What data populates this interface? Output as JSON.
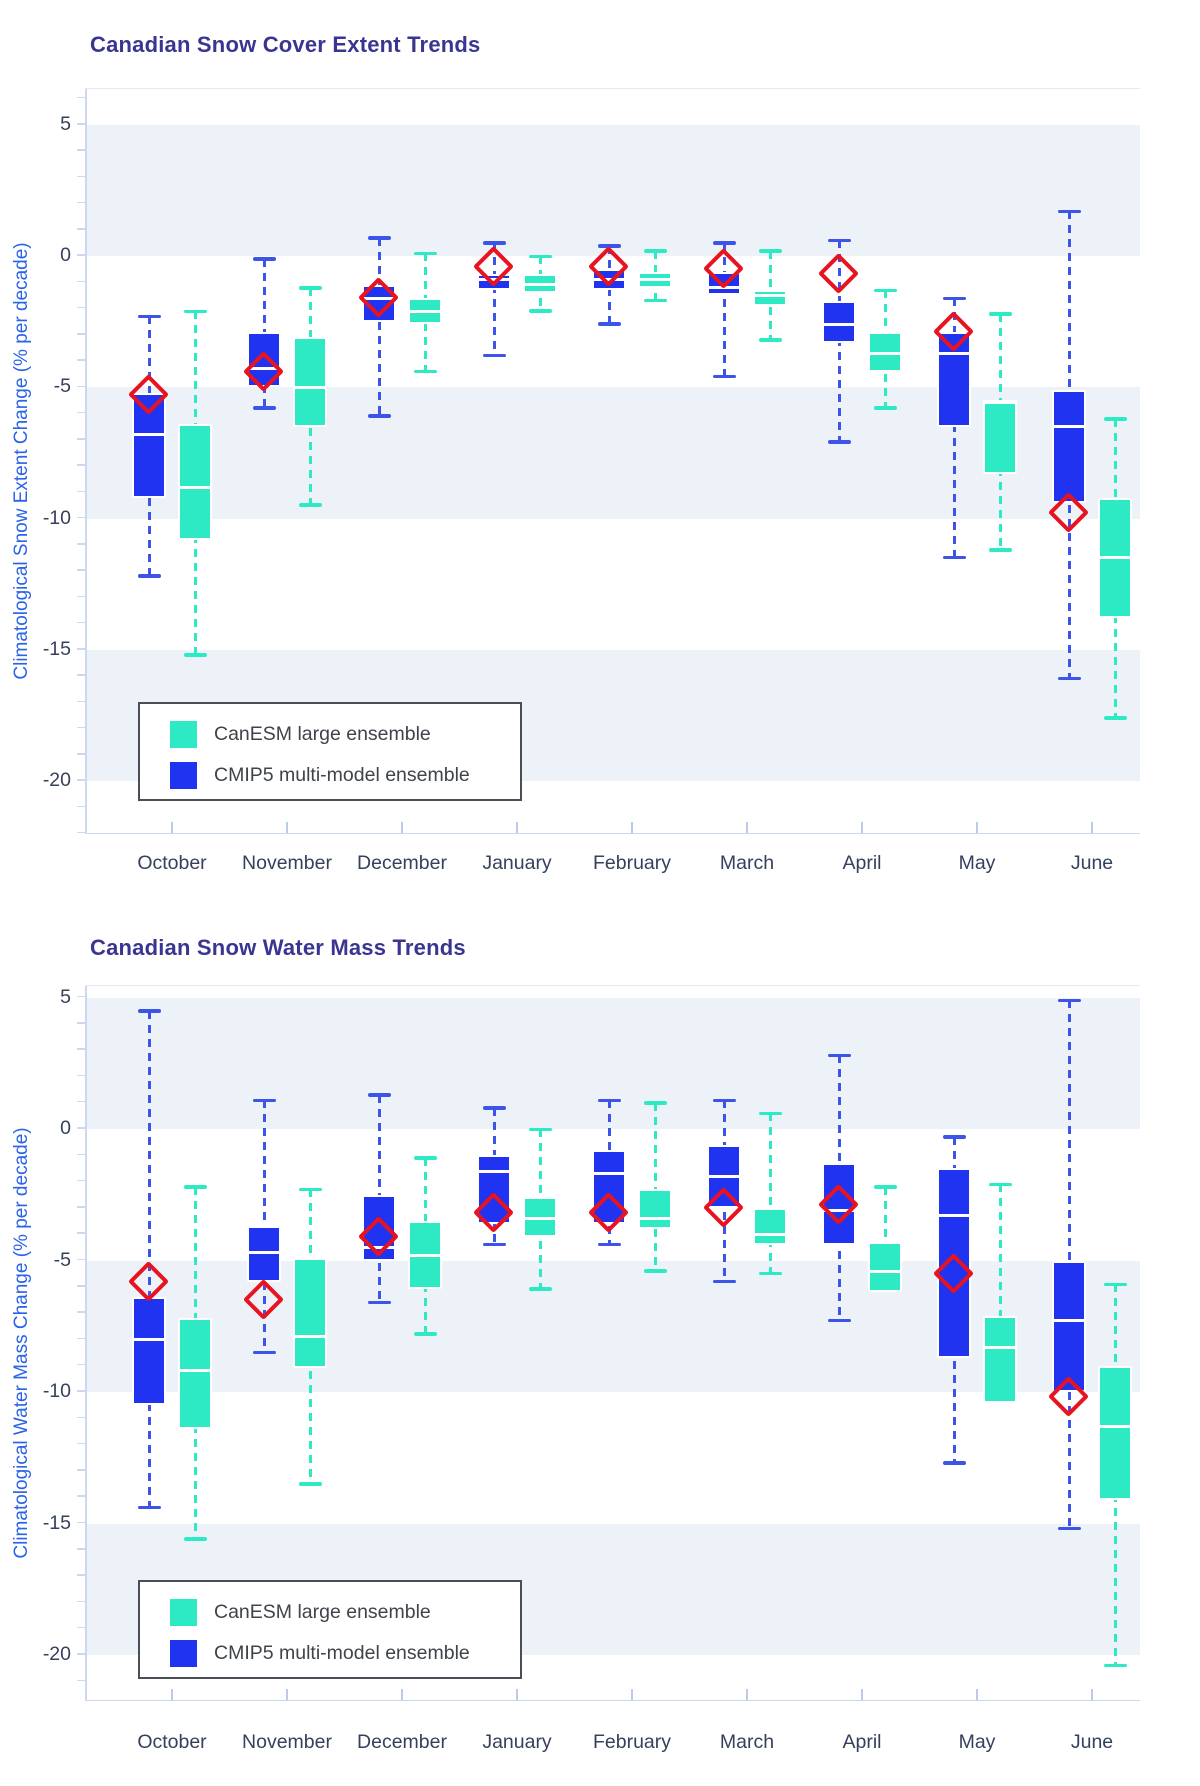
{
  "colors": {
    "cmip5_blue": "#2033f1",
    "cmip5_whisker": "#3c55e8",
    "canesm_teal": "#2deac5",
    "canesm_whisker": "#2deac5",
    "observation_red": "#e8131f",
    "band_gray": "#edf1f8",
    "axis_line": "#ccd8ee",
    "tick_text": "#35405c",
    "title_indigo": "#3a3590",
    "y_axis_label_blue": "#2a63e8"
  },
  "legend": {
    "items": [
      {
        "label": "CanESM large ensemble",
        "series": "canesm"
      },
      {
        "label": "CMIP5 multi-model ensemble",
        "series": "cmip5"
      }
    ]
  },
  "chart_data": [
    {
      "type": "box",
      "title": "Canadian Snow Cover Extent Trends",
      "ylabel": "Climatological Snow Extent Change (% per decade)",
      "xlabel": "",
      "categories": [
        "October",
        "November",
        "December",
        "January",
        "February",
        "March",
        "April",
        "May",
        "June"
      ],
      "yticks": [
        5,
        0,
        -5,
        -10,
        -15,
        -20
      ],
      "ylim": [
        6.4,
        -22.0
      ],
      "bands": [
        [
          5,
          0
        ],
        [
          -5,
          -10
        ],
        [
          -15,
          -20
        ]
      ],
      "grid": "banded",
      "legend_position": "bottom-left-inside",
      "series": [
        {
          "name": "CMIP5 multi-model ensemble",
          "boxes": [
            {
              "lo": -12.2,
              "q1": -9.2,
              "med": -6.8,
              "q3": -5.2,
              "hi": -2.3
            },
            {
              "lo": -5.8,
              "q1": -5.0,
              "med": -4.3,
              "q3": -2.9,
              "hi": -0.1
            },
            {
              "lo": -6.1,
              "q1": -2.5,
              "med": -1.6,
              "q3": -1.1,
              "hi": 0.7
            },
            {
              "lo": -3.8,
              "q1": -1.3,
              "med": -0.9,
              "q3": -0.7,
              "hi": 0.5
            },
            {
              "lo": -2.6,
              "q1": -1.3,
              "med": -0.9,
              "q3": -0.5,
              "hi": 0.4
            },
            {
              "lo": -4.6,
              "q1": -1.5,
              "med": -1.2,
              "q3": -0.6,
              "hi": 0.5
            },
            {
              "lo": -7.1,
              "q1": -3.3,
              "med": -2.6,
              "q3": -1.7,
              "hi": 0.6
            },
            {
              "lo": -11.5,
              "q1": -6.5,
              "med": -3.7,
              "q3": -2.9,
              "hi": -1.6
            },
            {
              "lo": -16.1,
              "q1": -9.4,
              "med": -6.5,
              "q3": -5.1,
              "hi": 1.7
            }
          ]
        },
        {
          "name": "CanESM large ensemble",
          "boxes": [
            {
              "lo": -15.2,
              "q1": -10.8,
              "med": -8.8,
              "q3": -6.4,
              "hi": -2.1
            },
            {
              "lo": -9.5,
              "q1": -6.5,
              "med": -5.0,
              "q3": -3.1,
              "hi": -1.2
            },
            {
              "lo": -4.4,
              "q1": -2.6,
              "med": -2.1,
              "q3": -1.6,
              "hi": 0.1
            },
            {
              "lo": -2.1,
              "q1": -1.4,
              "med": -1.1,
              "q3": -0.7,
              "hi": 0.0
            },
            {
              "lo": -1.7,
              "q1": -1.2,
              "med": -0.9,
              "q3": -0.6,
              "hi": 0.2
            },
            {
              "lo": -3.2,
              "q1": -1.9,
              "med": -1.5,
              "q3": -1.3,
              "hi": 0.2
            },
            {
              "lo": -5.8,
              "q1": -4.4,
              "med": -3.7,
              "q3": -2.9,
              "hi": -1.3
            },
            {
              "lo": -11.2,
              "q1": -8.3,
              "med": -5.5,
              "q3": -5.5,
              "hi": -2.2
            },
            {
              "lo": -17.6,
              "q1": -13.8,
              "med": -11.5,
              "q3": -9.2,
              "hi": -6.2
            }
          ]
        }
      ],
      "observations": {
        "marker": "open-red-diamond",
        "values": [
          -5.3,
          -4.4,
          -1.6,
          -0.4,
          -0.4,
          -0.5,
          -0.7,
          -2.9,
          -9.8
        ]
      }
    },
    {
      "type": "box",
      "title": "Canadian Snow Water Mass Trends",
      "ylabel": "Climatological Water Mass Change (% per decade)",
      "xlabel": "",
      "categories": [
        "October",
        "November",
        "December",
        "January",
        "February",
        "March",
        "April",
        "May",
        "June"
      ],
      "yticks": [
        5,
        0,
        -5,
        -10,
        -15,
        -20
      ],
      "ylim": [
        5.4,
        -21.8
      ],
      "bands": [
        [
          5,
          0
        ],
        [
          -5,
          -10
        ],
        [
          -15,
          -20
        ]
      ],
      "grid": "banded",
      "legend_position": "bottom-left-inside",
      "series": [
        {
          "name": "CMIP5 multi-model ensemble",
          "boxes": [
            {
              "lo": -14.4,
              "q1": -10.5,
              "med": -8.0,
              "q3": -6.4,
              "hi": 4.5
            },
            {
              "lo": -8.5,
              "q1": -5.8,
              "med": -4.7,
              "q3": -3.7,
              "hi": 1.1
            },
            {
              "lo": -6.6,
              "q1": -5.0,
              "med": -4.5,
              "q3": -2.5,
              "hi": 1.3
            },
            {
              "lo": -4.4,
              "q1": -3.6,
              "med": -1.6,
              "q3": -1.0,
              "hi": 0.8
            },
            {
              "lo": -4.4,
              "q1": -3.6,
              "med": -1.7,
              "q3": -0.8,
              "hi": 1.1
            },
            {
              "lo": -5.8,
              "q1": -3.0,
              "med": -1.8,
              "q3": -0.6,
              "hi": 1.1
            },
            {
              "lo": -7.3,
              "q1": -4.4,
              "med": -3.1,
              "q3": -1.3,
              "hi": 2.8
            },
            {
              "lo": -12.7,
              "q1": -8.7,
              "med": -3.3,
              "q3": -1.5,
              "hi": -0.3
            },
            {
              "lo": -15.2,
              "q1": -10.0,
              "med": -7.3,
              "q3": -5.0,
              "hi": 4.9
            }
          ]
        },
        {
          "name": "CanESM large ensemble",
          "boxes": [
            {
              "lo": -15.6,
              "q1": -11.4,
              "med": -9.2,
              "q3": -7.2,
              "hi": -2.2
            },
            {
              "lo": -13.5,
              "q1": -9.1,
              "med": -7.9,
              "q3": -4.9,
              "hi": -2.3
            },
            {
              "lo": -7.8,
              "q1": -6.1,
              "med": -4.8,
              "q3": -3.5,
              "hi": -1.1
            },
            {
              "lo": -6.1,
              "q1": -4.1,
              "med": -3.4,
              "q3": -2.6,
              "hi": 0.0
            },
            {
              "lo": -5.4,
              "q1": -3.8,
              "med": -3.4,
              "q3": -2.3,
              "hi": 1.0
            },
            {
              "lo": -5.5,
              "q1": -4.4,
              "med": -4.0,
              "q3": -3.0,
              "hi": 0.6
            },
            {
              "lo": -6.2,
              "q1": -6.2,
              "med": -5.4,
              "q3": -4.3,
              "hi": -2.2
            },
            {
              "lo": -10.4,
              "q1": -10.4,
              "med": -8.3,
              "q3": -7.1,
              "hi": -2.1
            },
            {
              "lo": -20.4,
              "q1": -14.1,
              "med": -11.3,
              "q3": -9.0,
              "hi": -5.9
            }
          ]
        }
      ],
      "observations": {
        "marker": "open-red-diamond",
        "values": [
          -5.8,
          -6.5,
          -4.1,
          -3.2,
          -3.2,
          -3.0,
          -2.9,
          -5.5,
          -10.2
        ]
      }
    }
  ]
}
